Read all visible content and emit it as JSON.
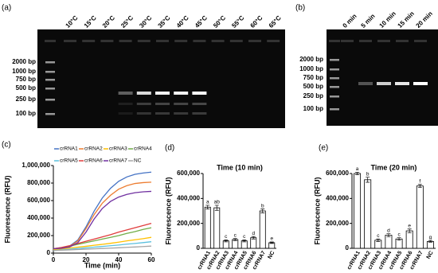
{
  "panel_labels": [
    "(a)",
    "(b)",
    "(c)",
    "(d)",
    "(e)"
  ],
  "gels": [
    {
      "lanes": [
        "10°C",
        "15°C",
        "20°C",
        "25°C",
        "30°C",
        "35°C",
        "40°C",
        "45°C",
        "50°C",
        "55°C",
        "60°C",
        "65°C"
      ],
      "ladder": [
        "2000 bp",
        "1000 bp",
        "750 bp",
        "500 bp",
        "250 bp",
        "100 bp"
      ]
    },
    {
      "lanes": [
        "0 min",
        "5 min",
        "10 min",
        "15 min",
        "20 min"
      ],
      "ladder": [
        "2000 bp",
        "1000 bp",
        "750 bp",
        "500 bp",
        "250 bp",
        "100 bp"
      ]
    }
  ],
  "chart_data": [
    {
      "type": "line",
      "x_label": "Time (min)",
      "y_label": "Fluorescence (RFU)",
      "x": [
        0,
        5,
        10,
        15,
        20,
        25,
        30,
        35,
        40,
        45,
        50,
        55,
        60
      ],
      "xlim": [
        0,
        60
      ],
      "xticks": [
        0,
        20,
        40,
        60
      ],
      "ylim": [
        0,
        1000000
      ],
      "yticks": [
        {
          "value": 0,
          "label": "0"
        },
        {
          "value": 200000,
          "label": "200,000"
        },
        {
          "value": 400000,
          "label": "400,000"
        },
        {
          "value": 600000,
          "label": "600,000"
        },
        {
          "value": 800000,
          "label": "800,000"
        },
        {
          "value": 1000000,
          "label": "1,000,000"
        }
      ],
      "series": [
        {
          "name": "crRNA1",
          "color": "#4472c4",
          "values": [
            50000,
            60000,
            80000,
            150000,
            300000,
            480000,
            630000,
            740000,
            820000,
            870000,
            900000,
            915000,
            925000
          ]
        },
        {
          "name": "crRNA2",
          "color": "#ed7d31",
          "values": [
            50000,
            58000,
            75000,
            140000,
            280000,
            440000,
            570000,
            660000,
            730000,
            770000,
            795000,
            805000,
            810000
          ]
        },
        {
          "name": "crRNA3",
          "color": "#ffc000",
          "values": [
            40000,
            48000,
            58000,
            68000,
            78000,
            90000,
            100000,
            112000,
            125000,
            140000,
            152000,
            165000,
            180000
          ]
        },
        {
          "name": "crRNA4",
          "color": "#70ad47",
          "values": [
            50000,
            62000,
            80000,
            100000,
            120000,
            140000,
            160000,
            180000,
            200000,
            225000,
            245000,
            270000,
            290000
          ]
        },
        {
          "name": "crRNA5",
          "color": "#5bc0de",
          "values": [
            30000,
            36000,
            44000,
            52000,
            60000,
            68000,
            76000,
            84000,
            92000,
            102000,
            110000,
            120000,
            130000
          ]
        },
        {
          "name": "crRNA6",
          "color": "#e03c3c",
          "values": [
            50000,
            65000,
            85000,
            110000,
            135000,
            160000,
            185000,
            210000,
            240000,
            265000,
            290000,
            315000,
            340000
          ]
        },
        {
          "name": "crRNA7",
          "color": "#7030a0",
          "values": [
            50000,
            55000,
            70000,
            120000,
            240000,
            390000,
            510000,
            590000,
            640000,
            670000,
            690000,
            700000,
            705000
          ]
        },
        {
          "name": "NC",
          "color": "#a5a5a5",
          "values": [
            30000,
            33000,
            37000,
            41000,
            45000,
            49000,
            53000,
            57000,
            61000,
            66000,
            70000,
            75000,
            80000
          ]
        }
      ]
    },
    {
      "type": "bar",
      "title": "Time (10 min)",
      "y_label": "Fluorescence (RFU)",
      "color": "#ffffff",
      "categories": [
        "crRNA1",
        "crRNA2",
        "crRNA3",
        "crRNA4",
        "crRNA5",
        "crRNA6",
        "crRNA7",
        "NC"
      ],
      "values": [
        330000,
        325000,
        60000,
        70000,
        60000,
        85000,
        300000,
        45000
      ],
      "errors": [
        15000,
        20000,
        8000,
        8000,
        8000,
        10000,
        15000,
        6000
      ],
      "letters": [
        "a",
        "ab",
        "c",
        "c",
        "c",
        "d",
        "b",
        "e"
      ],
      "ylim": [
        0,
        600000
      ],
      "yticks": [
        {
          "value": 0,
          "label": "0"
        },
        {
          "value": 200000,
          "label": "200,000"
        },
        {
          "value": 400000,
          "label": "400,000"
        },
        {
          "value": 600000,
          "label": "600,000"
        }
      ]
    },
    {
      "type": "bar",
      "title": "Time (20 min)",
      "y_label": "Fluorescence (RFU)",
      "color": "#ffffff",
      "categories": [
        "crRNA1",
        "crRNA2",
        "crRNA3",
        "crRNA4",
        "crRNA5",
        "crRNA6",
        "crRNA7",
        "NC"
      ],
      "values": [
        600000,
        550000,
        65000,
        105000,
        75000,
        140000,
        500000,
        55000
      ],
      "errors": [
        10000,
        20000,
        10000,
        12000,
        10000,
        15000,
        12000,
        6000
      ],
      "letters": [
        "a",
        "b",
        "c",
        "d",
        "c",
        "e",
        "f",
        "g"
      ],
      "ylim": [
        0,
        600000
      ],
      "yticks": [
        {
          "value": 0,
          "label": "0"
        },
        {
          "value": 200000,
          "label": "200,000"
        },
        {
          "value": 400000,
          "label": "400,000"
        },
        {
          "value": 600000,
          "label": "600,000"
        }
      ]
    }
  ]
}
